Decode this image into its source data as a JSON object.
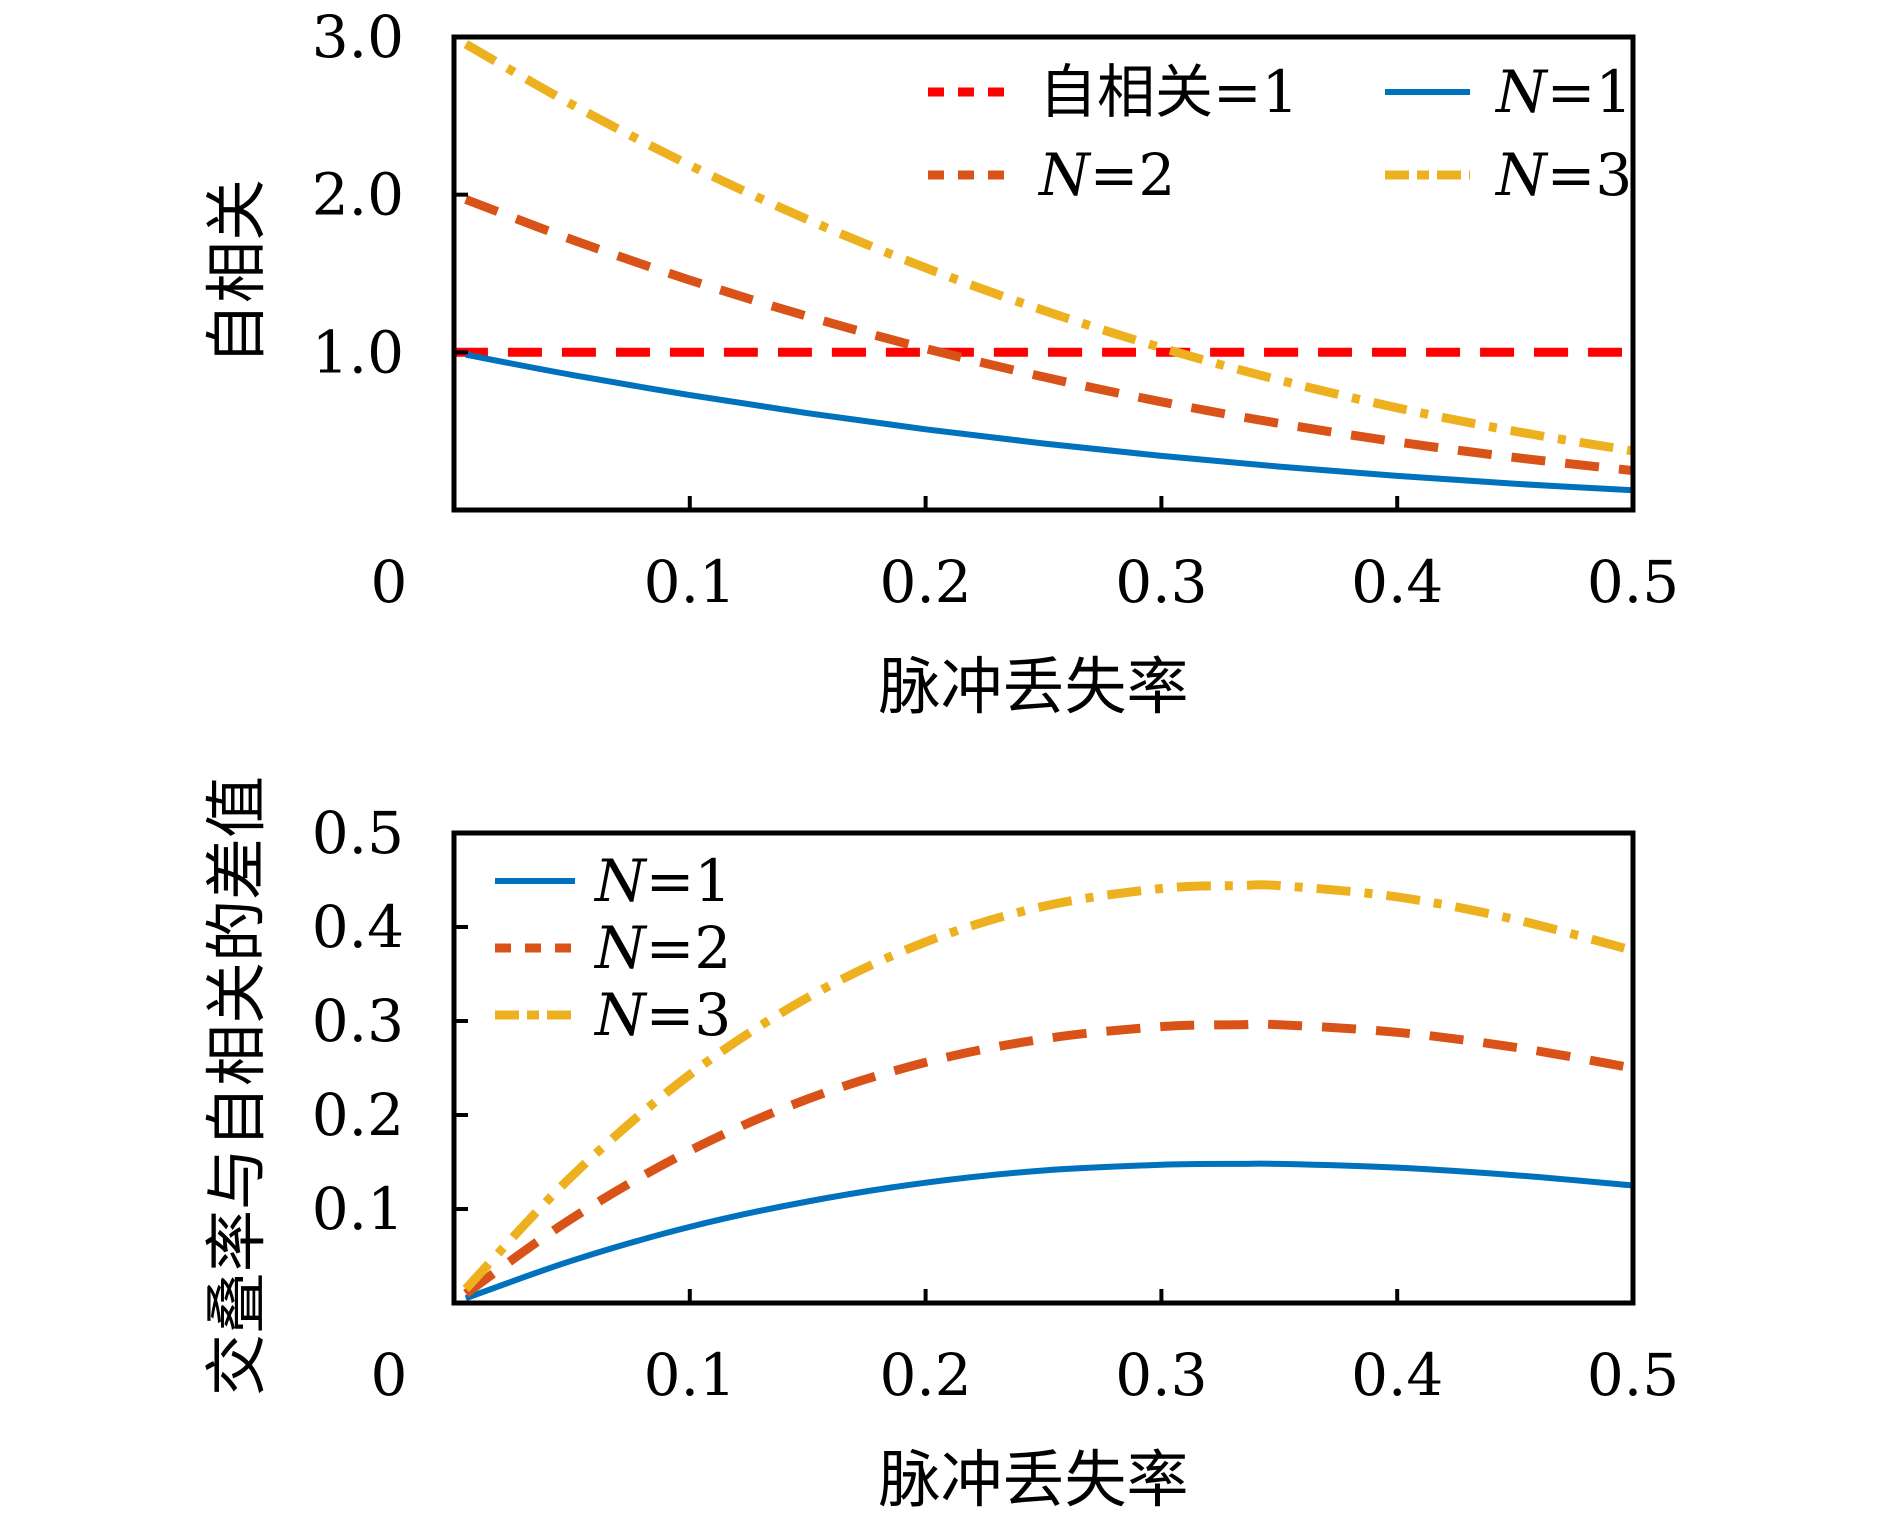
{
  "chart_data": [
    {
      "type": "line",
      "xlabel": "脉冲丢失率",
      "ylabel": "自相关",
      "xlim": [
        0,
        0.5
      ],
      "ylim": [
        0,
        3.0
      ],
      "x_ticks": [
        0,
        0.1,
        0.2,
        0.3,
        0.4,
        0.5
      ],
      "x_tick_labels": [
        "0",
        "0.1",
        "0.2",
        "0.3",
        "0.4",
        "0.5"
      ],
      "y_ticks": [
        1.0,
        2.0,
        3.0
      ],
      "y_tick_labels": [
        "1.0",
        "2.0",
        "3.0"
      ],
      "grid": false,
      "legend_position": "top-right",
      "legend_columns": 2,
      "x": [
        0.005,
        0.05,
        0.1,
        0.15,
        0.2,
        0.25,
        0.3,
        0.35,
        0.4,
        0.45,
        0.5
      ],
      "series": [
        {
          "name": "自相关=1",
          "legend_prefix": "自相关",
          "legend_suffix": "=1",
          "style": "dashed",
          "color": "#FF0000",
          "values": [
            1,
            1,
            1,
            1,
            1,
            1,
            1,
            1,
            1,
            1,
            1
          ]
        },
        {
          "name": "N=1",
          "legend_prefix": "N",
          "legend_suffix": "=1",
          "style": "solid",
          "color": "#0072BD",
          "values": [
            0.985,
            0.857,
            0.729,
            0.614,
            0.512,
            0.422,
            0.343,
            0.275,
            0.216,
            0.166,
            0.125
          ]
        },
        {
          "name": "N=2",
          "legend_prefix": "N",
          "legend_suffix": "=2",
          "style": "dashed",
          "color": "#D95319",
          "values": [
            1.97,
            1.715,
            1.458,
            1.228,
            1.024,
            0.844,
            0.686,
            0.549,
            0.432,
            0.333,
            0.25
          ]
        },
        {
          "name": "N=3",
          "legend_prefix": "N",
          "legend_suffix": "=3",
          "style": "dashdot",
          "color": "#EDB120",
          "values": [
            2.955,
            2.572,
            2.187,
            1.842,
            1.536,
            1.266,
            1.029,
            0.824,
            0.648,
            0.499,
            0.375
          ]
        }
      ]
    },
    {
      "type": "line",
      "xlabel": "脉冲丢失率",
      "ylabel": "交叠率与自相关的差值",
      "xlim": [
        0,
        0.5
      ],
      "ylim": [
        0,
        0.5
      ],
      "x_ticks": [
        0,
        0.1,
        0.2,
        0.3,
        0.4,
        0.5
      ],
      "x_tick_labels": [
        "0",
        "0.1",
        "0.2",
        "0.3",
        "0.4",
        "0.5"
      ],
      "y_ticks": [
        0.1,
        0.2,
        0.3,
        0.4,
        0.5
      ],
      "y_tick_labels": [
        "0.1",
        "0.2",
        "0.3",
        "0.4",
        "0.5"
      ],
      "grid": false,
      "legend_position": "top-left",
      "legend_columns": 1,
      "x": [
        0.005,
        0.05,
        0.1,
        0.15,
        0.2,
        0.25,
        0.3,
        0.333,
        0.35,
        0.4,
        0.45,
        0.5
      ],
      "series": [
        {
          "name": "N=1",
          "legend_prefix": "N",
          "legend_suffix": "=1",
          "style": "solid",
          "color": "#0072BD",
          "values": [
            0.005,
            0.045,
            0.081,
            0.108,
            0.128,
            0.141,
            0.147,
            0.148,
            0.148,
            0.144,
            0.136,
            0.125
          ]
        },
        {
          "name": "N=2",
          "legend_prefix": "N",
          "legend_suffix": "=2",
          "style": "dashed",
          "color": "#D95319",
          "values": [
            0.01,
            0.09,
            0.162,
            0.217,
            0.256,
            0.281,
            0.294,
            0.296,
            0.296,
            0.288,
            0.272,
            0.25
          ]
        },
        {
          "name": "N=3",
          "legend_prefix": "N",
          "legend_suffix": "=3",
          "style": "dashdot",
          "color": "#EDB120",
          "values": [
            0.015,
            0.135,
            0.243,
            0.325,
            0.384,
            0.422,
            0.441,
            0.444,
            0.444,
            0.432,
            0.408,
            0.375
          ]
        }
      ]
    }
  ]
}
